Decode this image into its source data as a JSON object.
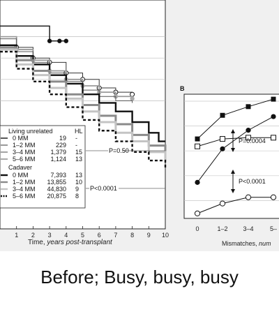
{
  "caption": "Before; Busy, busy, busy",
  "chart_data": [
    {
      "type": "line",
      "xlabel_main": "Time,",
      "xlabel_italic": "years post-transplant",
      "x_ticks": [
        1,
        2,
        3,
        4,
        5,
        6,
        7,
        8,
        9,
        10
      ],
      "xlim": [
        0,
        10
      ],
      "ylim": [
        0,
        1
      ],
      "p_values": [
        "P=0.50",
        "P<0.0001"
      ],
      "legend": {
        "col_head": "HL",
        "groups": [
          {
            "title": "Living unrelated",
            "rows": [
              {
                "label": "0 MM",
                "n": "19",
                "hl": "-"
              },
              {
                "label": "1–2 MM",
                "n": "229",
                "hl": "-"
              },
              {
                "label": "3–4 MM",
                "n": "1,379",
                "hl": "15"
              },
              {
                "label": "5–6 MM",
                "n": "1,124",
                "hl": "13"
              }
            ]
          },
          {
            "title": "Cadaver",
            "rows": [
              {
                "label": "0 MM",
                "n": "7,393",
                "hl": "13"
              },
              {
                "label": "1–2 MM",
                "n": "13,855",
                "hl": "10"
              },
              {
                "label": "3–4 MM",
                "n": "44,830",
                "hl": "9"
              },
              {
                "label": "5–6 MM",
                "n": "20,875",
                "hl": "8"
              }
            ]
          }
        ]
      },
      "series": [
        {
          "group": "Living unrelated",
          "name": "0 MM",
          "x": [
            0,
            3,
            3.6,
            4
          ],
          "y": [
            0.95,
            0.88,
            0.88,
            0.88
          ]
        },
        {
          "group": "Living unrelated",
          "name": "1–2 MM",
          "x": [
            0,
            1,
            2,
            3,
            4,
            5,
            6,
            7,
            8
          ],
          "y": [
            0.9,
            0.85,
            0.8,
            0.78,
            0.73,
            0.7,
            0.66,
            0.64,
            0.63
          ]
        },
        {
          "group": "Living unrelated",
          "name": "3–4 MM",
          "x": [
            0,
            1,
            2,
            3,
            4,
            5,
            6,
            7,
            8
          ],
          "y": [
            0.9,
            0.84,
            0.79,
            0.74,
            0.7,
            0.67,
            0.64,
            0.62,
            0.61
          ]
        },
        {
          "group": "Living unrelated",
          "name": "5–6 MM",
          "x": [
            0,
            1,
            2,
            3,
            4,
            5,
            6,
            7,
            8
          ],
          "y": [
            0.89,
            0.83,
            0.78,
            0.73,
            0.69,
            0.65,
            0.62,
            0.6,
            0.59
          ]
        },
        {
          "group": "Cadaver",
          "name": "0 MM",
          "x": [
            0,
            1,
            2,
            3,
            4,
            5,
            6,
            7,
            8,
            9,
            9.6,
            10
          ],
          "y": [
            0.86,
            0.81,
            0.77,
            0.72,
            0.68,
            0.63,
            0.59,
            0.55,
            0.5,
            0.45,
            0.41,
            0.41
          ]
        },
        {
          "group": "Cadaver",
          "name": "1–2 MM",
          "x": [
            0,
            1,
            2,
            3,
            4,
            5,
            6,
            7,
            8,
            9,
            10
          ],
          "y": [
            0.85,
            0.79,
            0.74,
            0.69,
            0.63,
            0.58,
            0.53,
            0.49,
            0.44,
            0.39,
            0.35
          ]
        },
        {
          "group": "Cadaver",
          "name": "3–4 MM",
          "x": [
            0,
            1,
            2,
            3,
            4,
            5,
            6,
            7,
            8,
            9,
            10
          ],
          "y": [
            0.84,
            0.77,
            0.72,
            0.66,
            0.61,
            0.55,
            0.5,
            0.45,
            0.41,
            0.36,
            0.32
          ]
        },
        {
          "group": "Cadaver",
          "name": "5–6 MM",
          "x": [
            0,
            1,
            2,
            3,
            4,
            5,
            6,
            7,
            8,
            9,
            10
          ],
          "y": [
            0.83,
            0.75,
            0.69,
            0.63,
            0.57,
            0.51,
            0.46,
            0.41,
            0.36,
            0.32,
            0.28
          ]
        }
      ]
    },
    {
      "type": "line",
      "panel_letter": "B",
      "xlabel_main": "Mismatches,",
      "xlabel_italic": "num",
      "categories": [
        "0",
        "1–2",
        "3–4",
        "5–"
      ],
      "ylim": [
        0,
        1
      ],
      "p_values": [
        "P=0.0004",
        "P<0.0001"
      ],
      "series": [
        {
          "marker": "filled-square",
          "values": [
            0.64,
            0.83,
            0.9,
            0.96
          ]
        },
        {
          "marker": "filled-circle",
          "values": [
            0.29,
            0.56,
            0.71,
            0.82
          ]
        },
        {
          "marker": "open-square",
          "values": [
            0.58,
            0.64,
            0.65,
            0.65
          ]
        },
        {
          "marker": "open-circle",
          "values": [
            0.04,
            0.12,
            0.17,
            0.17
          ]
        }
      ]
    }
  ]
}
